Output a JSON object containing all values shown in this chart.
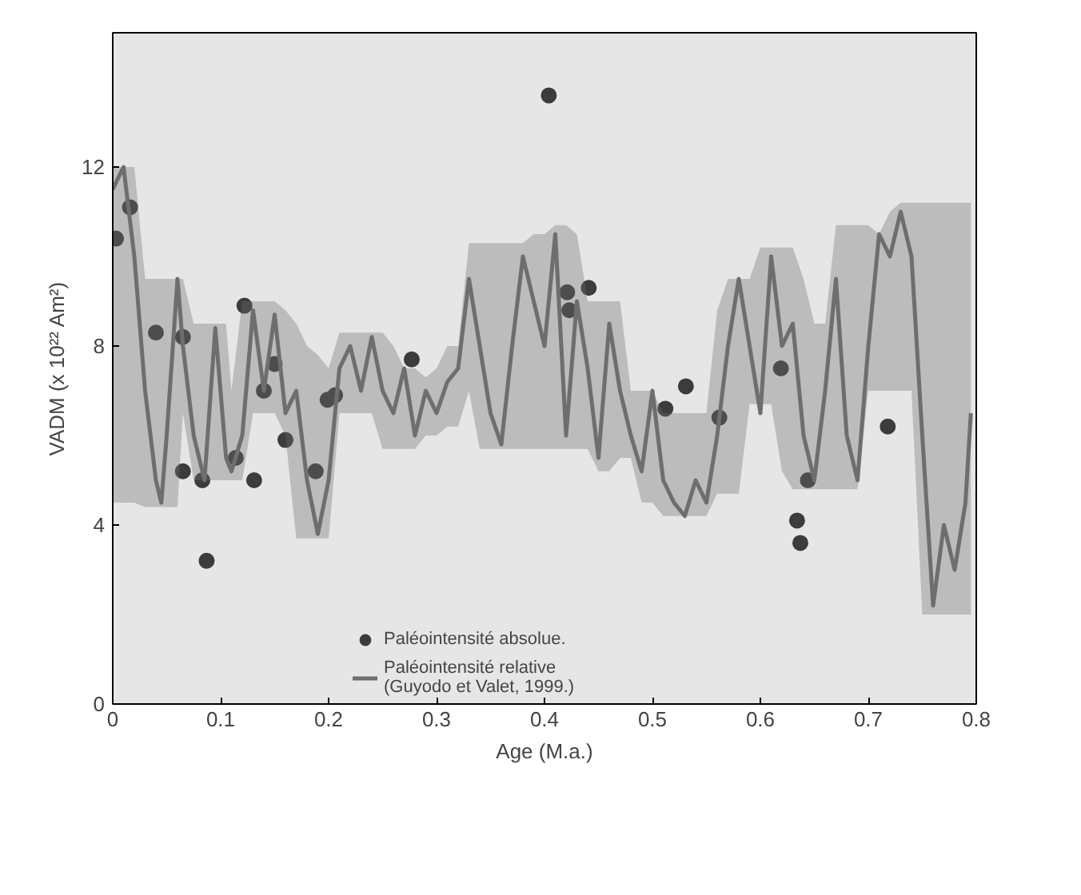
{
  "chart_data": {
    "type": "scatter",
    "xlabel": "Age (M.a.)",
    "ylabel": "VADM (x 10²² Am²)",
    "xlim": [
      0,
      0.8
    ],
    "ylim": [
      0,
      15
    ],
    "xticks": [
      0,
      0.1,
      0.2,
      0.3,
      0.4,
      0.5,
      0.6,
      0.7,
      0.8
    ],
    "yticks": [
      0,
      4,
      8,
      12
    ],
    "grid": false,
    "legend": "bottom",
    "series": [
      {
        "name": "Paléointensité absolue.",
        "marker": "circle",
        "color": "#3c3c3c",
        "x": [
          0.003,
          0.016,
          0.04,
          0.065,
          0.065,
          0.083,
          0.087,
          0.114,
          0.122,
          0.131,
          0.14,
          0.15,
          0.16,
          0.188,
          0.199,
          0.206,
          0.277,
          0.404,
          0.421,
          0.423,
          0.441,
          0.512,
          0.531,
          0.562,
          0.619,
          0.634,
          0.637,
          0.644,
          0.718
        ],
        "values": [
          10.4,
          11.1,
          8.3,
          8.2,
          5.2,
          5.0,
          3.2,
          5.5,
          8.9,
          5.0,
          7.0,
          7.6,
          5.9,
          5.2,
          6.8,
          6.9,
          7.7,
          13.6,
          9.2,
          8.8,
          9.3,
          6.6,
          7.1,
          6.4,
          7.5,
          4.1,
          3.6,
          5.0,
          6.2
        ]
      },
      {
        "name": "Paléointensité relative\n(Guyodo et Valet, 1999.)",
        "type": "line",
        "marker": "none",
        "line_style": "solid",
        "color": "#6e6e6e",
        "x": [
          0,
          0.01,
          0.02,
          0.03,
          0.04,
          0.045,
          0.05,
          0.06,
          0.065,
          0.075,
          0.085,
          0.095,
          0.105,
          0.11,
          0.12,
          0.13,
          0.14,
          0.15,
          0.16,
          0.17,
          0.18,
          0.19,
          0.2,
          0.21,
          0.22,
          0.23,
          0.24,
          0.25,
          0.26,
          0.27,
          0.28,
          0.29,
          0.3,
          0.31,
          0.32,
          0.33,
          0.34,
          0.35,
          0.36,
          0.37,
          0.38,
          0.39,
          0.4,
          0.41,
          0.42,
          0.43,
          0.44,
          0.45,
          0.46,
          0.47,
          0.48,
          0.49,
          0.5,
          0.51,
          0.52,
          0.53,
          0.54,
          0.55,
          0.56,
          0.57,
          0.58,
          0.59,
          0.6,
          0.61,
          0.62,
          0.63,
          0.64,
          0.65,
          0.66,
          0.67,
          0.68,
          0.69,
          0.7,
          0.71,
          0.72,
          0.73,
          0.74,
          0.75,
          0.76,
          0.77,
          0.78,
          0.79,
          0.795
        ],
        "values": [
          11.5,
          12,
          10,
          7,
          5,
          4.5,
          6,
          9.5,
          8,
          6,
          5,
          8.4,
          5.5,
          5.2,
          6,
          8.8,
          7,
          8.7,
          6.5,
          7,
          5,
          3.8,
          5,
          7.5,
          8,
          7,
          8.2,
          7,
          6.5,
          7.5,
          6,
          7,
          6.5,
          7.2,
          7.5,
          9.5,
          8,
          6.5,
          5.8,
          8,
          10,
          9,
          8,
          10.5,
          6,
          9,
          7.5,
          5.5,
          8.5,
          7,
          6,
          5.2,
          7,
          5,
          4.5,
          4.2,
          5,
          4.5,
          6,
          8,
          9.5,
          8,
          6.5,
          10,
          8,
          8.5,
          6,
          5,
          7,
          9.5,
          6,
          5,
          8,
          10.5,
          10,
          11,
          10,
          6,
          2.2,
          4,
          3,
          4.5,
          6.5
        ],
        "lower": [
          4.5,
          4.5,
          4.5,
          4.4,
          4.4,
          4.4,
          4.4,
          4.4,
          6.5,
          5,
          5,
          5,
          5,
          5,
          5,
          6.5,
          6.5,
          6.5,
          6,
          3.7,
          3.7,
          3.7,
          3.7,
          6.5,
          6.5,
          6.5,
          6.5,
          5.7,
          5.7,
          5.7,
          5.7,
          6,
          6,
          6.2,
          6.2,
          7,
          5.7,
          5.7,
          5.7,
          5.7,
          5.7,
          5.7,
          5.7,
          5.7,
          5.7,
          5.7,
          5.7,
          5.2,
          5.2,
          5.5,
          5.5,
          4.5,
          4.5,
          4.2,
          4.2,
          4.2,
          4.2,
          4.2,
          4.7,
          4.7,
          4.7,
          6.7,
          6.7,
          6.7,
          5.2,
          4.8,
          4.8,
          4.8,
          4.8,
          4.8,
          4.8,
          4.8,
          7,
          7,
          7,
          7,
          7,
          2,
          2,
          2,
          2,
          2,
          2
        ],
        "upper": [
          12,
          12,
          12,
          9.5,
          9.5,
          9.5,
          9.5,
          9.5,
          9.5,
          8.5,
          8.5,
          8.5,
          8.5,
          7,
          9,
          9,
          9,
          9,
          8.8,
          8.5,
          8,
          7.8,
          7.5,
          8.3,
          8.3,
          8.3,
          8.3,
          8.3,
          8,
          7.5,
          7.5,
          7.3,
          7.5,
          8,
          8,
          10.3,
          10.3,
          10.3,
          10.3,
          10.3,
          10.3,
          10.5,
          10.5,
          10.7,
          10.7,
          10.5,
          9,
          9,
          9,
          9,
          7,
          7,
          7,
          6.5,
          6.5,
          6.5,
          6.5,
          6.5,
          8.8,
          9.5,
          9.5,
          9.5,
          10.2,
          10.2,
          10.2,
          10.2,
          9.5,
          8.5,
          8.5,
          10.7,
          10.7,
          10.7,
          10.7,
          10.5,
          11,
          11.2,
          11.2,
          11.2,
          11.2,
          11.2,
          11.2,
          11.2,
          11.2
        ]
      }
    ]
  }
}
